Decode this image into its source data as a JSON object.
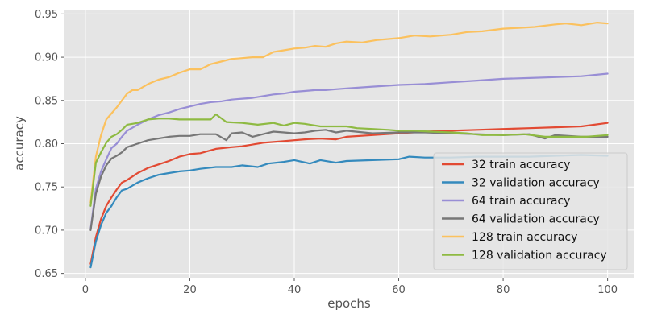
{
  "chart_data": {
    "type": "line",
    "xlabel": "epochs",
    "ylabel": "accuracy",
    "xlim": [
      -4,
      105
    ],
    "ylim": [
      0.645,
      0.955
    ],
    "xticks": [
      0,
      20,
      40,
      60,
      80,
      100
    ],
    "yticks": [
      0.65,
      0.7,
      0.75,
      0.8,
      0.85,
      0.9,
      0.95
    ],
    "grid": true,
    "legend_position": "lower-right",
    "series": [
      {
        "name": "32 train accuracy",
        "color": "#E24A33",
        "points": [
          [
            1,
            0.661
          ],
          [
            2,
            0.692
          ],
          [
            3,
            0.713
          ],
          [
            4,
            0.728
          ],
          [
            5,
            0.738
          ],
          [
            6,
            0.747
          ],
          [
            7,
            0.755
          ],
          [
            8,
            0.758
          ],
          [
            9,
            0.762
          ],
          [
            10,
            0.766
          ],
          [
            12,
            0.772
          ],
          [
            14,
            0.776
          ],
          [
            16,
            0.78
          ],
          [
            18,
            0.785
          ],
          [
            20,
            0.788
          ],
          [
            22,
            0.789
          ],
          [
            25,
            0.794
          ],
          [
            28,
            0.796
          ],
          [
            30,
            0.797
          ],
          [
            34,
            0.801
          ],
          [
            38,
            0.803
          ],
          [
            42,
            0.805
          ],
          [
            45,
            0.806
          ],
          [
            48,
            0.805
          ],
          [
            50,
            0.808
          ],
          [
            55,
            0.81
          ],
          [
            60,
            0.812
          ],
          [
            65,
            0.814
          ],
          [
            70,
            0.815
          ],
          [
            75,
            0.816
          ],
          [
            80,
            0.817
          ],
          [
            85,
            0.818
          ],
          [
            90,
            0.819
          ],
          [
            95,
            0.82
          ],
          [
            100,
            0.824
          ]
        ]
      },
      {
        "name": "32 validation accuracy",
        "color": "#348ABD",
        "points": [
          [
            1,
            0.657
          ],
          [
            2,
            0.687
          ],
          [
            3,
            0.706
          ],
          [
            4,
            0.72
          ],
          [
            5,
            0.728
          ],
          [
            6,
            0.738
          ],
          [
            7,
            0.746
          ],
          [
            8,
            0.748
          ],
          [
            10,
            0.755
          ],
          [
            12,
            0.76
          ],
          [
            14,
            0.764
          ],
          [
            16,
            0.766
          ],
          [
            18,
            0.768
          ],
          [
            20,
            0.769
          ],
          [
            22,
            0.771
          ],
          [
            25,
            0.773
          ],
          [
            28,
            0.773
          ],
          [
            30,
            0.775
          ],
          [
            33,
            0.773
          ],
          [
            35,
            0.777
          ],
          [
            38,
            0.779
          ],
          [
            40,
            0.781
          ],
          [
            43,
            0.777
          ],
          [
            45,
            0.781
          ],
          [
            48,
            0.778
          ],
          [
            50,
            0.78
          ],
          [
            55,
            0.781
          ],
          [
            60,
            0.782
          ],
          [
            62,
            0.785
          ],
          [
            65,
            0.784
          ],
          [
            70,
            0.784
          ],
          [
            75,
            0.785
          ],
          [
            80,
            0.785
          ],
          [
            85,
            0.785
          ],
          [
            90,
            0.786
          ],
          [
            95,
            0.787
          ],
          [
            100,
            0.786
          ]
        ]
      },
      {
        "name": "64 train accuracy",
        "color": "#988ED5",
        "points": [
          [
            1,
            0.701
          ],
          [
            2,
            0.748
          ],
          [
            3,
            0.768
          ],
          [
            4,
            0.782
          ],
          [
            5,
            0.795
          ],
          [
            6,
            0.8
          ],
          [
            7,
            0.808
          ],
          [
            8,
            0.815
          ],
          [
            10,
            0.822
          ],
          [
            12,
            0.828
          ],
          [
            14,
            0.833
          ],
          [
            16,
            0.836
          ],
          [
            18,
            0.84
          ],
          [
            20,
            0.843
          ],
          [
            22,
            0.846
          ],
          [
            24,
            0.848
          ],
          [
            26,
            0.849
          ],
          [
            28,
            0.851
          ],
          [
            30,
            0.852
          ],
          [
            32,
            0.853
          ],
          [
            34,
            0.855
          ],
          [
            36,
            0.857
          ],
          [
            38,
            0.858
          ],
          [
            40,
            0.86
          ],
          [
            42,
            0.861
          ],
          [
            44,
            0.862
          ],
          [
            46,
            0.862
          ],
          [
            48,
            0.863
          ],
          [
            50,
            0.864
          ],
          [
            55,
            0.866
          ],
          [
            60,
            0.868
          ],
          [
            65,
            0.869
          ],
          [
            70,
            0.871
          ],
          [
            75,
            0.873
          ],
          [
            80,
            0.875
          ],
          [
            85,
            0.876
          ],
          [
            90,
            0.877
          ],
          [
            95,
            0.878
          ],
          [
            100,
            0.881
          ]
        ]
      },
      {
        "name": "64 validation accuracy",
        "color": "#777777",
        "points": [
          [
            1,
            0.7
          ],
          [
            2,
            0.742
          ],
          [
            3,
            0.762
          ],
          [
            4,
            0.775
          ],
          [
            5,
            0.783
          ],
          [
            6,
            0.786
          ],
          [
            7,
            0.79
          ],
          [
            8,
            0.796
          ],
          [
            10,
            0.8
          ],
          [
            12,
            0.804
          ],
          [
            14,
            0.806
          ],
          [
            16,
            0.808
          ],
          [
            18,
            0.809
          ],
          [
            20,
            0.809
          ],
          [
            22,
            0.811
          ],
          [
            25,
            0.811
          ],
          [
            27,
            0.804
          ],
          [
            28,
            0.812
          ],
          [
            30,
            0.813
          ],
          [
            32,
            0.808
          ],
          [
            34,
            0.811
          ],
          [
            36,
            0.814
          ],
          [
            38,
            0.813
          ],
          [
            40,
            0.812
          ],
          [
            42,
            0.813
          ],
          [
            44,
            0.815
          ],
          [
            46,
            0.816
          ],
          [
            48,
            0.813
          ],
          [
            50,
            0.815
          ],
          [
            55,
            0.812
          ],
          [
            60,
            0.813
          ],
          [
            65,
            0.813
          ],
          [
            70,
            0.812
          ],
          [
            75,
            0.811
          ],
          [
            80,
            0.81
          ],
          [
            85,
            0.811
          ],
          [
            88,
            0.806
          ],
          [
            90,
            0.81
          ],
          [
            95,
            0.808
          ],
          [
            100,
            0.808
          ]
        ]
      },
      {
        "name": "128 train accuracy",
        "color": "#FBC15E",
        "points": [
          [
            1,
            0.732
          ],
          [
            2,
            0.785
          ],
          [
            3,
            0.81
          ],
          [
            4,
            0.828
          ],
          [
            5,
            0.835
          ],
          [
            6,
            0.842
          ],
          [
            7,
            0.85
          ],
          [
            8,
            0.858
          ],
          [
            9,
            0.862
          ],
          [
            10,
            0.862
          ],
          [
            12,
            0.869
          ],
          [
            14,
            0.874
          ],
          [
            16,
            0.877
          ],
          [
            18,
            0.882
          ],
          [
            20,
            0.886
          ],
          [
            22,
            0.886
          ],
          [
            24,
            0.892
          ],
          [
            26,
            0.895
          ],
          [
            28,
            0.898
          ],
          [
            30,
            0.899
          ],
          [
            32,
            0.9
          ],
          [
            34,
            0.9
          ],
          [
            36,
            0.906
          ],
          [
            38,
            0.908
          ],
          [
            40,
            0.91
          ],
          [
            42,
            0.911
          ],
          [
            44,
            0.913
          ],
          [
            46,
            0.912
          ],
          [
            48,
            0.916
          ],
          [
            50,
            0.918
          ],
          [
            53,
            0.917
          ],
          [
            56,
            0.92
          ],
          [
            60,
            0.922
          ],
          [
            63,
            0.925
          ],
          [
            66,
            0.924
          ],
          [
            70,
            0.926
          ],
          [
            73,
            0.929
          ],
          [
            76,
            0.93
          ],
          [
            80,
            0.933
          ],
          [
            83,
            0.934
          ],
          [
            86,
            0.935
          ],
          [
            90,
            0.938
          ],
          [
            92,
            0.939
          ],
          [
            95,
            0.937
          ],
          [
            98,
            0.94
          ],
          [
            100,
            0.939
          ]
        ]
      },
      {
        "name": "128 validation accuracy",
        "color": "#8EBA42",
        "points": [
          [
            1,
            0.728
          ],
          [
            2,
            0.778
          ],
          [
            3,
            0.79
          ],
          [
            4,
            0.801
          ],
          [
            5,
            0.808
          ],
          [
            6,
            0.811
          ],
          [
            7,
            0.816
          ],
          [
            8,
            0.822
          ],
          [
            10,
            0.824
          ],
          [
            12,
            0.828
          ],
          [
            14,
            0.829
          ],
          [
            16,
            0.829
          ],
          [
            18,
            0.828
          ],
          [
            20,
            0.828
          ],
          [
            22,
            0.828
          ],
          [
            24,
            0.828
          ],
          [
            25,
            0.834
          ],
          [
            27,
            0.825
          ],
          [
            30,
            0.824
          ],
          [
            33,
            0.822
          ],
          [
            36,
            0.824
          ],
          [
            38,
            0.821
          ],
          [
            40,
            0.824
          ],
          [
            42,
            0.823
          ],
          [
            45,
            0.82
          ],
          [
            48,
            0.82
          ],
          [
            50,
            0.82
          ],
          [
            52,
            0.818
          ],
          [
            55,
            0.817
          ],
          [
            58,
            0.816
          ],
          [
            60,
            0.815
          ],
          [
            63,
            0.815
          ],
          [
            66,
            0.814
          ],
          [
            70,
            0.813
          ],
          [
            73,
            0.812
          ],
          [
            76,
            0.81
          ],
          [
            80,
            0.81
          ],
          [
            84,
            0.811
          ],
          [
            88,
            0.808
          ],
          [
            92,
            0.808
          ],
          [
            96,
            0.808
          ],
          [
            100,
            0.81
          ]
        ]
      }
    ]
  }
}
